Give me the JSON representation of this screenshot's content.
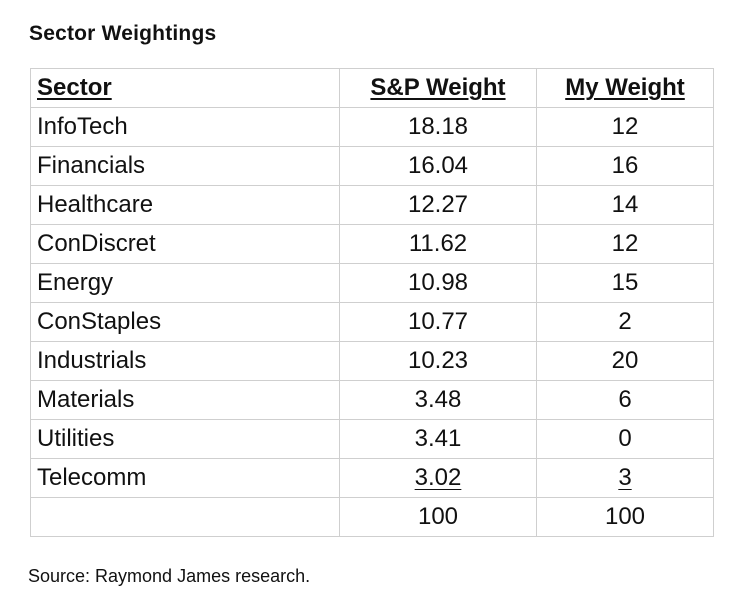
{
  "title": "Sector Weightings",
  "table": {
    "headers": [
      "Sector",
      "S&P Weight",
      "My Weight"
    ],
    "rows": [
      {
        "sector": "InfoTech",
        "sp_weight": "18.18",
        "my_weight": "12"
      },
      {
        "sector": "Financials",
        "sp_weight": "16.04",
        "my_weight": "16"
      },
      {
        "sector": "Healthcare",
        "sp_weight": "12.27",
        "my_weight": "14"
      },
      {
        "sector": "ConDiscret",
        "sp_weight": "11.62",
        "my_weight": "12"
      },
      {
        "sector": "Energy",
        "sp_weight": "10.98",
        "my_weight": "15"
      },
      {
        "sector": "ConStaples",
        "sp_weight": "10.77",
        "my_weight": "2"
      },
      {
        "sector": "Industrials",
        "sp_weight": "10.23",
        "my_weight": "20"
      },
      {
        "sector": "Materials",
        "sp_weight": "3.48",
        "my_weight": "6"
      },
      {
        "sector": "Utilities",
        "sp_weight": "3.41",
        "my_weight": "0"
      },
      {
        "sector": "Telecomm",
        "sp_weight": "3.02",
        "my_weight": "3"
      }
    ],
    "total": {
      "sector": "",
      "sp_weight": "100",
      "my_weight": "100"
    }
  },
  "source": "Source:  Raymond James research."
}
